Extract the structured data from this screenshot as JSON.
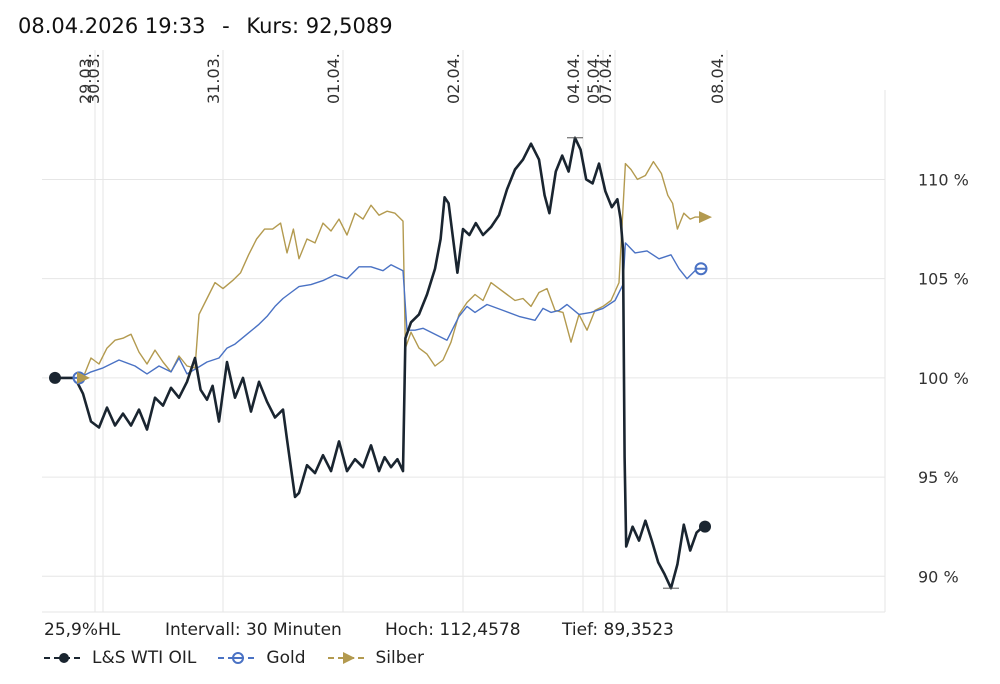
{
  "header": {
    "datetime": "08.04.2026 19:33",
    "separator": "-",
    "kurs_label": "Kurs:",
    "kurs_value": "92,5089"
  },
  "stats": {
    "spread": "25,9%HL",
    "interval": "Intervall: 30 Minuten",
    "high": "Hoch: 112,4578",
    "low": "Tief: 89,3523"
  },
  "colors": {
    "wti": "#1a2530",
    "gold": "#4a72c4",
    "silber": "#b39a4f",
    "grid": "#e6e6e6"
  },
  "chart_data": {
    "type": "line",
    "title": "",
    "ylabel": "",
    "xlabel": "",
    "ylim": [
      88.2,
      113.5
    ],
    "grid": true,
    "legend": "bottom-left",
    "y_ticks": [
      {
        "value": 90,
        "label": "90 %"
      },
      {
        "value": 95,
        "label": "95 %"
      },
      {
        "value": 100,
        "label": "100 %"
      },
      {
        "value": 105,
        "label": "105 %"
      },
      {
        "value": 110,
        "label": "110 %"
      }
    ],
    "x_ticks": [
      {
        "x": 0.05,
        "label": "29.03."
      },
      {
        "x": 0.06,
        "label": "30.03."
      },
      {
        "x": 0.21,
        "label": "31.03."
      },
      {
        "x": 0.36,
        "label": "01.04."
      },
      {
        "x": 0.51,
        "label": "02.04."
      },
      {
        "x": 0.66,
        "label": "04.04."
      },
      {
        "x": 0.685,
        "label": "05.04."
      },
      {
        "x": 0.7,
        "label": "07.04."
      },
      {
        "x": 0.84,
        "label": "08.04."
      }
    ],
    "series": [
      {
        "name": "L&S WTI OIL",
        "key": "wti",
        "marker": "circle",
        "points": [
          [
            0,
            100
          ],
          [
            0.025,
            100
          ],
          [
            0.035,
            99.2
          ],
          [
            0.045,
            97.8
          ],
          [
            0.055,
            97.5
          ],
          [
            0.065,
            98.5
          ],
          [
            0.075,
            97.6
          ],
          [
            0.085,
            98.2
          ],
          [
            0.095,
            97.6
          ],
          [
            0.105,
            98.4
          ],
          [
            0.115,
            97.4
          ],
          [
            0.125,
            99.0
          ],
          [
            0.135,
            98.6
          ],
          [
            0.145,
            99.5
          ],
          [
            0.155,
            99.0
          ],
          [
            0.165,
            99.8
          ],
          [
            0.175,
            101.0
          ],
          [
            0.182,
            99.4
          ],
          [
            0.19,
            98.9
          ],
          [
            0.197,
            99.6
          ],
          [
            0.205,
            97.8
          ],
          [
            0.215,
            100.8
          ],
          [
            0.225,
            99.0
          ],
          [
            0.235,
            100.0
          ],
          [
            0.245,
            98.3
          ],
          [
            0.255,
            99.8
          ],
          [
            0.265,
            98.8
          ],
          [
            0.275,
            98.0
          ],
          [
            0.285,
            98.4
          ],
          [
            0.29,
            96.9
          ],
          [
            0.3,
            94.0
          ],
          [
            0.305,
            94.2
          ],
          [
            0.315,
            95.6
          ],
          [
            0.325,
            95.2
          ],
          [
            0.335,
            96.1
          ],
          [
            0.345,
            95.3
          ],
          [
            0.355,
            96.8
          ],
          [
            0.365,
            95.3
          ],
          [
            0.375,
            95.9
          ],
          [
            0.385,
            95.5
          ],
          [
            0.395,
            96.6
          ],
          [
            0.405,
            95.3
          ],
          [
            0.412,
            96.0
          ],
          [
            0.42,
            95.5
          ],
          [
            0.428,
            95.9
          ],
          [
            0.435,
            95.3
          ],
          [
            0.438,
            102.0
          ],
          [
            0.445,
            102.8
          ],
          [
            0.455,
            103.2
          ],
          [
            0.465,
            104.2
          ],
          [
            0.475,
            105.5
          ],
          [
            0.482,
            107.0
          ],
          [
            0.487,
            109.1
          ],
          [
            0.492,
            108.8
          ],
          [
            0.497,
            107.2
          ],
          [
            0.503,
            105.3
          ],
          [
            0.51,
            107.5
          ],
          [
            0.518,
            107.2
          ],
          [
            0.526,
            107.8
          ],
          [
            0.535,
            107.2
          ],
          [
            0.545,
            107.6
          ],
          [
            0.555,
            108.2
          ],
          [
            0.565,
            109.5
          ],
          [
            0.575,
            110.5
          ],
          [
            0.585,
            111.0
          ],
          [
            0.595,
            111.8
          ],
          [
            0.605,
            111.0
          ],
          [
            0.612,
            109.2
          ],
          [
            0.618,
            108.3
          ],
          [
            0.626,
            110.4
          ],
          [
            0.634,
            111.2
          ],
          [
            0.642,
            110.4
          ],
          [
            0.65,
            112.1
          ],
          [
            0.657,
            111.5
          ],
          [
            0.664,
            110.0
          ],
          [
            0.672,
            109.8
          ],
          [
            0.68,
            110.8
          ],
          [
            0.688,
            109.4
          ],
          [
            0.696,
            108.6
          ],
          [
            0.703,
            109.0
          ],
          [
            0.707,
            108.0
          ],
          [
            0.71,
            106.5
          ],
          [
            0.712,
            96.0
          ],
          [
            0.714,
            91.5
          ],
          [
            0.722,
            92.5
          ],
          [
            0.73,
            91.8
          ],
          [
            0.738,
            92.8
          ],
          [
            0.746,
            91.8
          ],
          [
            0.754,
            90.7
          ],
          [
            0.762,
            90.1
          ],
          [
            0.77,
            89.4
          ],
          [
            0.778,
            90.6
          ],
          [
            0.786,
            92.6
          ],
          [
            0.794,
            91.3
          ],
          [
            0.802,
            92.2
          ],
          [
            0.81,
            92.5
          ]
        ]
      },
      {
        "name": "Gold",
        "key": "gold",
        "marker": "half-circle",
        "points": [
          [
            0.03,
            100
          ],
          [
            0.045,
            100.3
          ],
          [
            0.06,
            100.5
          ],
          [
            0.08,
            100.9
          ],
          [
            0.1,
            100.6
          ],
          [
            0.115,
            100.2
          ],
          [
            0.13,
            100.6
          ],
          [
            0.145,
            100.3
          ],
          [
            0.155,
            101.0
          ],
          [
            0.165,
            100.2
          ],
          [
            0.178,
            100.5
          ],
          [
            0.19,
            100.8
          ],
          [
            0.205,
            101.0
          ],
          [
            0.215,
            101.5
          ],
          [
            0.225,
            101.7
          ],
          [
            0.24,
            102.2
          ],
          [
            0.255,
            102.7
          ],
          [
            0.265,
            103.1
          ],
          [
            0.275,
            103.6
          ],
          [
            0.285,
            104.0
          ],
          [
            0.295,
            104.3
          ],
          [
            0.305,
            104.6
          ],
          [
            0.32,
            104.7
          ],
          [
            0.335,
            104.9
          ],
          [
            0.35,
            105.2
          ],
          [
            0.365,
            105.0
          ],
          [
            0.38,
            105.6
          ],
          [
            0.395,
            105.6
          ],
          [
            0.41,
            105.4
          ],
          [
            0.42,
            105.7
          ],
          [
            0.43,
            105.5
          ],
          [
            0.435,
            105.4
          ],
          [
            0.44,
            102.4
          ],
          [
            0.45,
            102.4
          ],
          [
            0.46,
            102.5
          ],
          [
            0.475,
            102.2
          ],
          [
            0.49,
            101.9
          ],
          [
            0.505,
            103.1
          ],
          [
            0.515,
            103.6
          ],
          [
            0.525,
            103.3
          ],
          [
            0.54,
            103.7
          ],
          [
            0.56,
            103.4
          ],
          [
            0.58,
            103.1
          ],
          [
            0.6,
            102.9
          ],
          [
            0.61,
            103.5
          ],
          [
            0.62,
            103.3
          ],
          [
            0.63,
            103.4
          ],
          [
            0.64,
            103.7
          ],
          [
            0.655,
            103.2
          ],
          [
            0.67,
            103.3
          ],
          [
            0.685,
            103.5
          ],
          [
            0.7,
            103.9
          ],
          [
            0.71,
            104.7
          ],
          [
            0.713,
            106.8
          ],
          [
            0.725,
            106.3
          ],
          [
            0.74,
            106.4
          ],
          [
            0.755,
            106.0
          ],
          [
            0.77,
            106.2
          ],
          [
            0.78,
            105.5
          ],
          [
            0.79,
            105.0
          ],
          [
            0.8,
            105.4
          ],
          [
            0.805,
            105.5
          ]
        ]
      },
      {
        "name": "Silber",
        "key": "silber",
        "marker": "triangle",
        "points": [
          [
            0.035,
            100
          ],
          [
            0.045,
            101.0
          ],
          [
            0.055,
            100.7
          ],
          [
            0.065,
            101.5
          ],
          [
            0.075,
            101.9
          ],
          [
            0.085,
            102.0
          ],
          [
            0.095,
            102.2
          ],
          [
            0.105,
            101.3
          ],
          [
            0.115,
            100.7
          ],
          [
            0.125,
            101.4
          ],
          [
            0.135,
            100.8
          ],
          [
            0.145,
            100.3
          ],
          [
            0.155,
            101.1
          ],
          [
            0.165,
            100.6
          ],
          [
            0.175,
            100.5
          ],
          [
            0.18,
            103.2
          ],
          [
            0.19,
            104.0
          ],
          [
            0.2,
            104.8
          ],
          [
            0.21,
            104.5
          ],
          [
            0.222,
            104.9
          ],
          [
            0.232,
            105.3
          ],
          [
            0.242,
            106.2
          ],
          [
            0.252,
            107.0
          ],
          [
            0.262,
            107.5
          ],
          [
            0.272,
            107.5
          ],
          [
            0.282,
            107.8
          ],
          [
            0.29,
            106.3
          ],
          [
            0.298,
            107.5
          ],
          [
            0.305,
            106.0
          ],
          [
            0.315,
            107.0
          ],
          [
            0.325,
            106.8
          ],
          [
            0.335,
            107.8
          ],
          [
            0.345,
            107.4
          ],
          [
            0.355,
            108.0
          ],
          [
            0.365,
            107.2
          ],
          [
            0.375,
            108.3
          ],
          [
            0.385,
            108.0
          ],
          [
            0.395,
            108.7
          ],
          [
            0.405,
            108.2
          ],
          [
            0.415,
            108.4
          ],
          [
            0.425,
            108.3
          ],
          [
            0.435,
            107.9
          ],
          [
            0.438,
            101.5
          ],
          [
            0.445,
            102.3
          ],
          [
            0.455,
            101.5
          ],
          [
            0.465,
            101.2
          ],
          [
            0.475,
            100.6
          ],
          [
            0.485,
            100.9
          ],
          [
            0.495,
            101.8
          ],
          [
            0.505,
            103.2
          ],
          [
            0.515,
            103.8
          ],
          [
            0.525,
            104.2
          ],
          [
            0.535,
            103.9
          ],
          [
            0.545,
            104.8
          ],
          [
            0.555,
            104.5
          ],
          [
            0.565,
            104.2
          ],
          [
            0.575,
            103.9
          ],
          [
            0.585,
            104.0
          ],
          [
            0.595,
            103.6
          ],
          [
            0.605,
            104.3
          ],
          [
            0.615,
            104.5
          ],
          [
            0.625,
            103.4
          ],
          [
            0.635,
            103.3
          ],
          [
            0.645,
            101.8
          ],
          [
            0.655,
            103.2
          ],
          [
            0.665,
            102.4
          ],
          [
            0.675,
            103.4
          ],
          [
            0.685,
            103.6
          ],
          [
            0.695,
            103.9
          ],
          [
            0.705,
            104.8
          ],
          [
            0.713,
            110.8
          ],
          [
            0.72,
            110.5
          ],
          [
            0.728,
            110.0
          ],
          [
            0.738,
            110.2
          ],
          [
            0.748,
            110.9
          ],
          [
            0.758,
            110.3
          ],
          [
            0.766,
            109.2
          ],
          [
            0.772,
            108.8
          ],
          [
            0.778,
            107.5
          ],
          [
            0.786,
            108.3
          ],
          [
            0.794,
            108.0
          ],
          [
            0.8,
            108.1
          ],
          [
            0.81,
            108.1
          ]
        ]
      }
    ]
  },
  "legend": {
    "items": [
      {
        "label": "L&S WTI OIL"
      },
      {
        "label": "Gold"
      },
      {
        "label": "Silber"
      }
    ]
  }
}
